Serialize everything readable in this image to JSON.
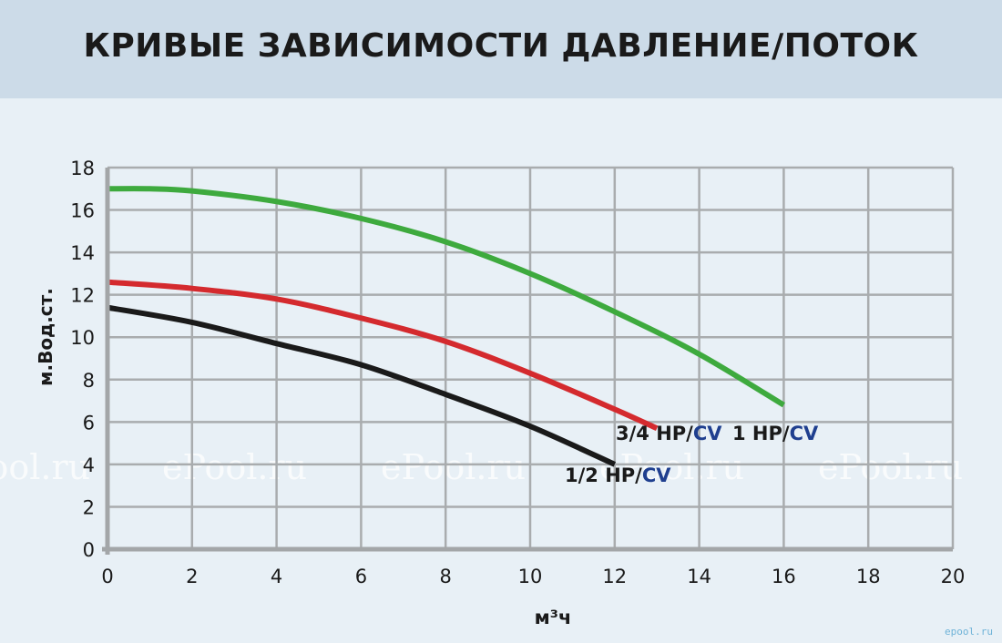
{
  "header": {
    "title": "КРИВЫЕ ЗАВИСИМОСТИ ДАВЛЕНИЕ/ПОТОК"
  },
  "watermark": {
    "text": "ePool.ru",
    "brand": "epool.ru"
  },
  "chart_data": {
    "type": "line",
    "title": "КРИВЫЕ ЗАВИСИМОСТИ ДАВЛЕНИЕ/ПОТОК",
    "xlabel": "м³ч",
    "ylabel": "м.Вод.ст.",
    "xlim": [
      0,
      20
    ],
    "ylim": [
      0,
      18
    ],
    "xticks": [
      0,
      2,
      4,
      6,
      8,
      10,
      12,
      14,
      16,
      18,
      20
    ],
    "yticks": [
      0,
      2,
      4,
      6,
      8,
      10,
      12,
      14,
      16,
      18
    ],
    "grid": true,
    "series": [
      {
        "name": "1 HP/CV",
        "name_parts": [
          "1 HP/",
          "CV"
        ],
        "color": "#3eaa3e",
        "x": [
          0,
          1,
          2,
          4,
          6,
          8,
          10,
          12,
          14,
          16
        ],
        "y": [
          17.0,
          17.0,
          16.9,
          16.4,
          15.6,
          14.5,
          13.0,
          11.2,
          9.2,
          6.8
        ]
      },
      {
        "name": "3/4 HP/CV",
        "name_parts": [
          "3/4 HP/",
          "CV"
        ],
        "color": "#d42a2e",
        "x": [
          0,
          2,
          4,
          6,
          8,
          10,
          12,
          13
        ],
        "y": [
          12.6,
          12.3,
          11.8,
          10.9,
          9.8,
          8.3,
          6.6,
          5.7
        ]
      },
      {
        "name": "1/2 HP/CV",
        "name_parts": [
          "1/2 HP/",
          "CV"
        ],
        "color": "#1a1a1a",
        "x": [
          0,
          2,
          4,
          6,
          8,
          10,
          12
        ],
        "y": [
          11.4,
          10.7,
          9.7,
          8.7,
          7.3,
          5.8,
          4.0
        ]
      }
    ],
    "accent_color": "#1f3f8f"
  }
}
